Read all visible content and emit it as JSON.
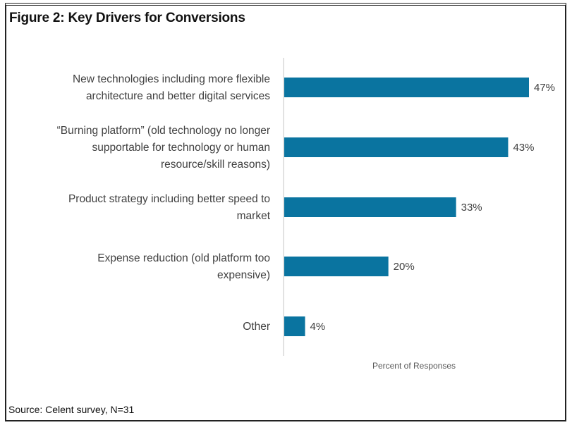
{
  "chart_data": {
    "type": "bar",
    "orientation": "horizontal",
    "title": "Figure 2: Key Drivers for Conversions",
    "categories": [
      [
        "New technologies including more flexible",
        "architecture and better digital services"
      ],
      [
        "“Burning platform” (old technology no longer",
        "supportable for technology or human",
        "resource/skill reasons)"
      ],
      [
        "Product strategy including better speed to",
        "market"
      ],
      [
        "Expense reduction (old platform too",
        "expensive)"
      ],
      [
        "Other"
      ]
    ],
    "values": [
      47,
      43,
      33,
      20,
      4
    ],
    "data_labels": [
      "47%",
      "43%",
      "33%",
      "20%",
      "4%"
    ],
    "xlabel": "Percent of Responses",
    "ylabel": "",
    "xlim": [
      0,
      50
    ],
    "grid": false,
    "bar_color": "#0A74A0",
    "source": "Source: Celent survey, N=31"
  }
}
